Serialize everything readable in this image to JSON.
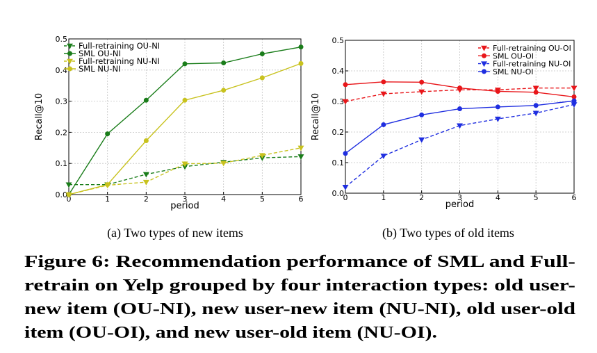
{
  "chart_data": [
    {
      "type": "line",
      "subcaption": "(a)  Two types of new items",
      "xlabel": "period",
      "ylabel": "Recall@10",
      "x": [
        0,
        1,
        2,
        3,
        4,
        5,
        6
      ],
      "xticks": [
        "0",
        "1",
        "2",
        "3",
        "4",
        "5",
        "6"
      ],
      "ylim": [
        0.0,
        0.5
      ],
      "yticks": [
        "0.0",
        "0.1",
        "0.2",
        "0.3",
        "0.4",
        "0.5"
      ],
      "grid": true,
      "legend_position": "top-left",
      "series": [
        {
          "name": "Full-retraining OU-NI",
          "color": "#1a7d1a",
          "dash": true,
          "marker": "triangle-down",
          "values": [
            0.032,
            0.032,
            0.065,
            0.09,
            0.104,
            0.118,
            0.122
          ]
        },
        {
          "name": "SML OU-NI",
          "color": "#1a7d1a",
          "dash": false,
          "marker": "circle",
          "values": [
            0.0,
            0.195,
            0.303,
            0.42,
            0.423,
            0.452,
            0.474
          ]
        },
        {
          "name": "Full-retraining NU-NI",
          "color": "#c8c21e",
          "dash": true,
          "marker": "triangle-down",
          "values": [
            0.0,
            0.03,
            0.04,
            0.099,
            0.101,
            0.126,
            0.15
          ]
        },
        {
          "name": "SML NU-NI",
          "color": "#c8c21e",
          "dash": false,
          "marker": "circle",
          "values": [
            0.0,
            0.032,
            0.173,
            0.303,
            0.335,
            0.375,
            0.421
          ]
        }
      ]
    },
    {
      "type": "line",
      "subcaption": "(b)  Two types of old items",
      "xlabel": "period",
      "ylabel": "Recall@10",
      "x": [
        0,
        1,
        2,
        3,
        4,
        5,
        6
      ],
      "xticks": [
        "0",
        "1",
        "2",
        "3",
        "4",
        "5",
        "6"
      ],
      "ylim": [
        0.0,
        0.5
      ],
      "yticks": [
        "0.0",
        "0.1",
        "0.2",
        "0.3",
        "0.4",
        "0.5"
      ],
      "grid": true,
      "legend_position": "top-right",
      "series": [
        {
          "name": "Full-retraining OU-OI",
          "color": "#e8161a",
          "dash": true,
          "marker": "triangle-down",
          "values": [
            0.3,
            0.325,
            0.332,
            0.338,
            0.338,
            0.344,
            0.344
          ]
        },
        {
          "name": "SML OU-OI",
          "color": "#e8161a",
          "dash": false,
          "marker": "circle",
          "values": [
            0.355,
            0.364,
            0.363,
            0.344,
            0.333,
            0.33,
            0.315
          ]
        },
        {
          "name": "Full-retraining NU-OI",
          "color": "#1f2ee0",
          "dash": true,
          "marker": "triangle-down",
          "values": [
            0.02,
            0.122,
            0.175,
            0.221,
            0.243,
            0.262,
            0.29
          ]
        },
        {
          "name": "SML NU-OI",
          "color": "#1f2ee0",
          "dash": false,
          "marker": "circle",
          "values": [
            0.13,
            0.224,
            0.256,
            0.276,
            0.282,
            0.287,
            0.302
          ]
        }
      ]
    }
  ],
  "caption": {
    "lines": [
      "Figure 6: Recommendation performance of SML and Full-",
      "retrain on Yelp grouped by four interaction types: old user-",
      "new item (OU-NI), new user-new item (NU-NI), old user-old",
      "item (OU-OI), and new user-old item (NU-OI)."
    ]
  }
}
